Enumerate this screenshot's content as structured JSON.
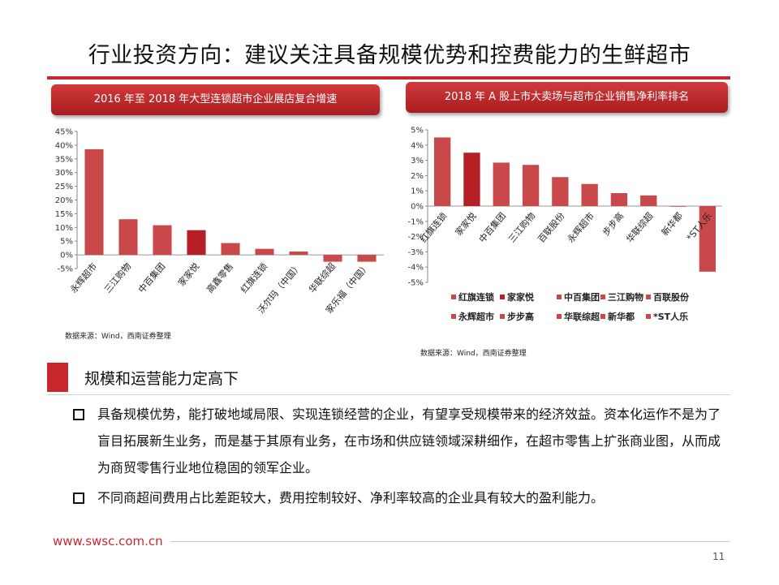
{
  "page": {
    "title": "行业投资方向：建议关注具备规模优势和控费能力的生鲜超市",
    "website": "www.swsc.com.cn",
    "page_number": "11",
    "accent_color": "#c8282d"
  },
  "left_panel": {
    "header": "2016 年至 2018 年大型连锁超市企业展店复合增速",
    "source": "数据来源：Wind，西南证券整理"
  },
  "right_panel": {
    "header": "2018 年 A 股上市大卖场与超市企业销售净利率排名",
    "source": "数据来源：Wind，西南证券整理"
  },
  "section": {
    "title": "规模和运营能力定高下",
    "bullets": [
      "具备规模优势，能打破地域局限、实现连锁经营的企业，有望享受规模带来的经济效益。资本化运作不是为了盲目拓展新生业务，而是基于其原有业务，在市场和供应链领域深耕细作，在超市零售上扩张商业图，从而成为商贸零售行业地位稳固的领军企业。",
      "不同商超间费用占比差距较大，费用控制较好、净利率较高的企业具有较大的盈利能力。"
    ]
  },
  "chart_data": [
    {
      "type": "bar",
      "categories": [
        "永辉超市",
        "三江购物",
        "中百集团",
        "家家悦",
        "高鑫零售",
        "红旗连锁",
        "沃尔玛（中国）",
        "华联综超",
        "家乐福（中国）"
      ],
      "values": [
        38.5,
        13.0,
        10.8,
        9.0,
        4.3,
        2.2,
        1.2,
        -2.5,
        -2.5
      ],
      "highlight_index": 3,
      "yticks": [
        "45%",
        "40%",
        "35%",
        "30%",
        "25%",
        "20%",
        "15%",
        "10%",
        "5%",
        "0%",
        "-5%"
      ],
      "ylim": [
        -5,
        45
      ],
      "bar_color": "#c9494b",
      "highlight_color": "#b42025"
    },
    {
      "type": "bar",
      "categories": [
        "红旗连锁",
        "家家悦",
        "中百集团",
        "三江购物",
        "百联股份",
        "永辉超市",
        "步步高",
        "华联综超",
        "新华都",
        "*ST人乐"
      ],
      "values": [
        4.5,
        3.5,
        2.85,
        2.7,
        1.9,
        1.45,
        0.85,
        0.7,
        -0.02,
        -4.3
      ],
      "highlight_index": 1,
      "yticks": [
        "5%",
        "4%",
        "3%",
        "2%",
        "1%",
        "0%",
        "-1%",
        "-2%",
        "-3%",
        "-4%",
        "-5%"
      ],
      "ylim": [
        -5,
        5
      ],
      "legend_rows": [
        [
          "红旗连锁",
          "家家悦",
          "中百集团",
          "三江购物",
          "百联股份"
        ],
        [
          "永辉超市",
          "步步高",
          "华联综超",
          "新华都",
          "*ST人乐"
        ]
      ],
      "legend_placement": "bottom",
      "bar_color": "#c9494b",
      "highlight_color": "#b42025"
    }
  ]
}
